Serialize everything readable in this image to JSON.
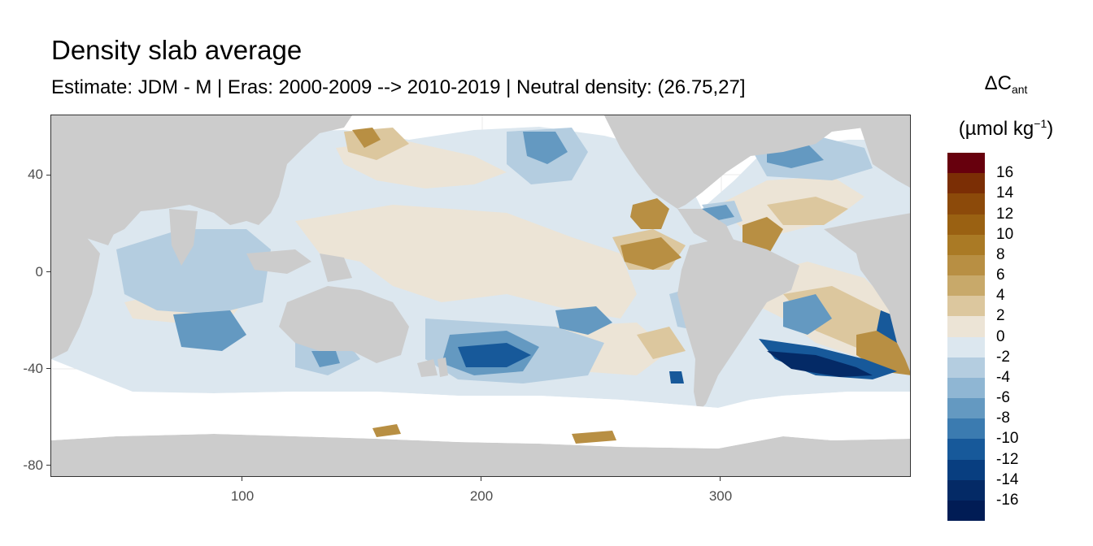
{
  "header": {
    "title": "Density slab average",
    "subtitle": "Estimate: JDM - M | Eras: 2000-2009 --> 2010-2019 | Neutral density: (26.75,27]"
  },
  "axes": {
    "x_ticks": [
      "100",
      "200",
      "300"
    ],
    "y_ticks": [
      "40",
      "0",
      "-40",
      "-80"
    ]
  },
  "legend": {
    "title_main": "ΔC",
    "title_sub": "ant",
    "unit_prefix": "(µmol kg",
    "unit_exp": "−1",
    "unit_suffix": ")",
    "labels": [
      "16",
      "14",
      "12",
      "10",
      "8",
      "6",
      "4",
      "2",
      "0",
      "-2",
      "-4",
      "-6",
      "-8",
      "-10",
      "-12",
      "-14",
      "-16"
    ],
    "colors": [
      "#67000d",
      "#7b2e05",
      "#8c4a0a",
      "#9a6112",
      "#aa7a25",
      "#b88f43",
      "#c8a96a",
      "#dcc79e",
      "#ece4d6",
      "#dce7ef",
      "#b4cde0",
      "#8fb6d3",
      "#6499c1",
      "#3b7bb0",
      "#17599a",
      "#083e80",
      "#042a66",
      "#011c55"
    ]
  },
  "map_colors": {
    "land": "#cccccc",
    "nodata": "#ffffff",
    "grid": "#ebebeb"
  }
}
